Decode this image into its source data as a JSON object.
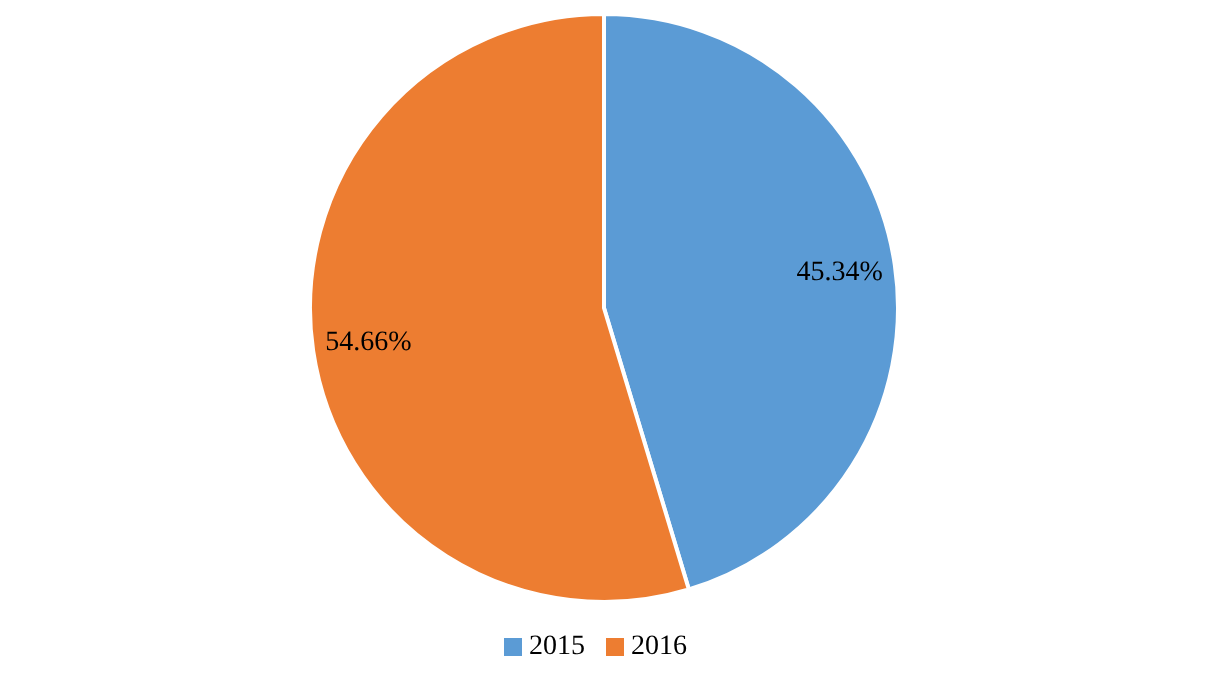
{
  "chart_data": {
    "type": "pie",
    "categories": [
      "2015",
      "2016"
    ],
    "values": [
      45.34,
      54.66
    ],
    "colors": [
      "#5b9bd5",
      "#ed7d31"
    ],
    "value_labels": [
      "45.34%",
      "54.66%"
    ],
    "legend": "bottom"
  }
}
